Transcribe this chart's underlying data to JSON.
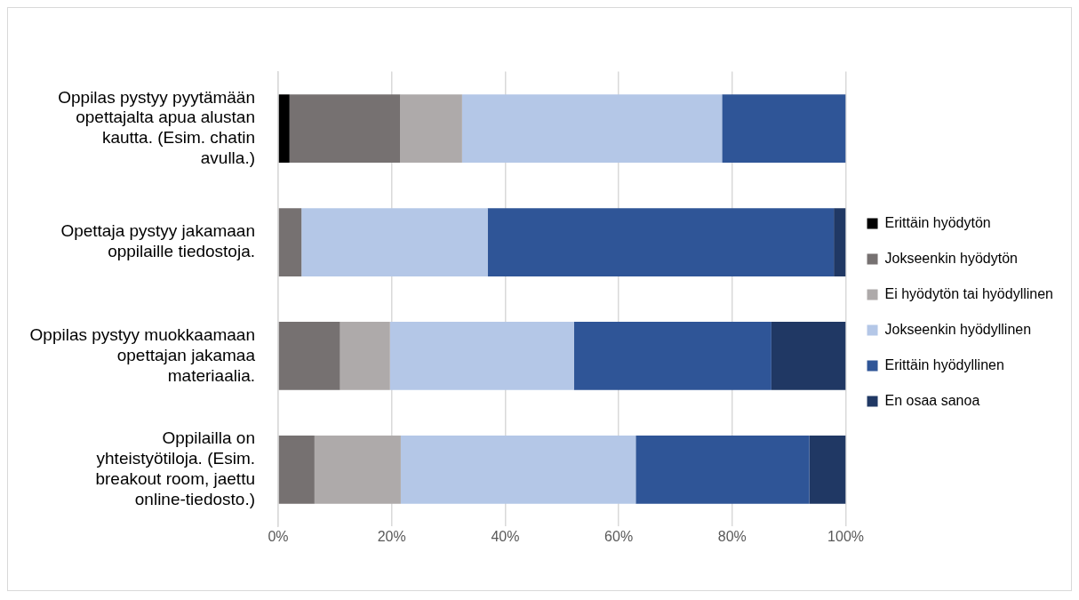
{
  "chart_data": {
    "type": "bar",
    "orientation": "horizontal",
    "stacked": true,
    "categories": [
      "Oppilas pystyy pyytämään opettajalta apua alustan kautta. (Esim. chatin avulla.)",
      "Opettaja pystyy jakamaan oppilaille tiedostoja.",
      "Oppilas pystyy muokkaamaan opettajan jakamaa materiaalia.",
      "Oppilailla on yhteistyötiloja. (Esim. breakout room, jaettu online-tiedosto.)"
    ],
    "series": [
      {
        "name": "Erittäin hyödytön",
        "color": "#000000",
        "values": [
          2,
          0,
          0,
          0
        ]
      },
      {
        "name": "Jokseenkin hyödytön",
        "color": "#767171",
        "values": [
          19.5,
          4.1,
          10.9,
          6.4
        ]
      },
      {
        "name": "Ei hyödytön tai hyödyllinen",
        "color": "#aeaaaa",
        "values": [
          10.9,
          0,
          8.8,
          15.2
        ]
      },
      {
        "name": "Jokseenkin hyödyllinen",
        "color": "#b4c7e7",
        "values": [
          45.8,
          32.8,
          32.4,
          41.4
        ]
      },
      {
        "name": "Erittäin hyödyllinen",
        "color": "#2f5597",
        "values": [
          21.8,
          61,
          34.8,
          30.6
        ]
      },
      {
        "name": "En osaa sanoa",
        "color": "#203864",
        "values": [
          0,
          2.1,
          13.1,
          6.4
        ]
      }
    ],
    "xlim": [
      0,
      100
    ],
    "xticks": [
      {
        "value": 0,
        "label": "0%"
      },
      {
        "value": 20,
        "label": "20%"
      },
      {
        "value": 40,
        "label": "40%"
      },
      {
        "value": 60,
        "label": "60%"
      },
      {
        "value": 80,
        "label": "80%"
      },
      {
        "value": 100,
        "label": "100%"
      }
    ],
    "grid": "x",
    "legend": "right"
  }
}
